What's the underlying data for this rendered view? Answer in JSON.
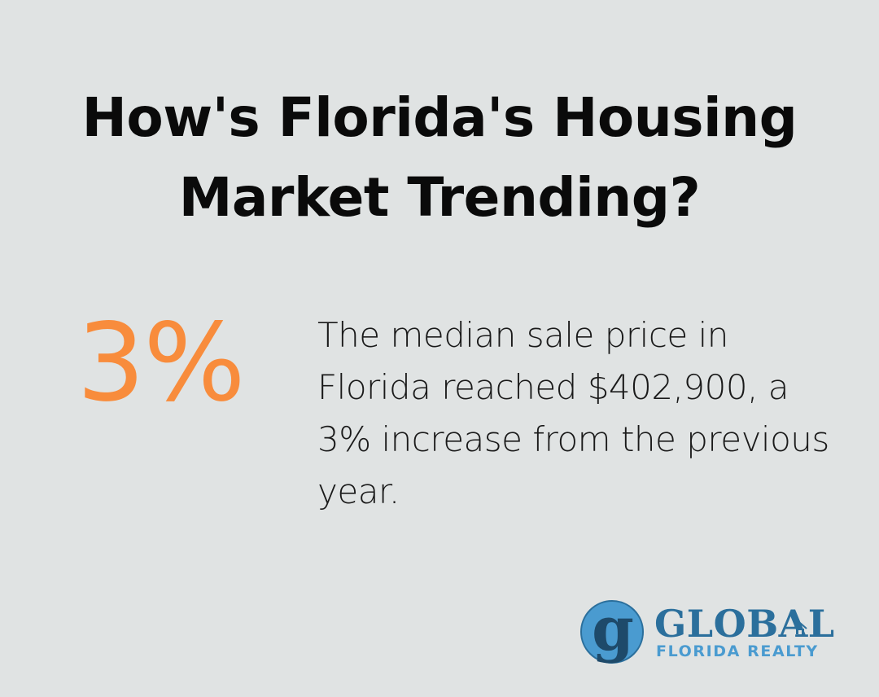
{
  "title": "How's Florida's Housing Market Trending?",
  "stat": {
    "value": "3%",
    "description": "The median sale price in Florida reached $402,900, a 3% increase from the previous year."
  },
  "logo": {
    "mark_letter": "g",
    "name": "GLOBAL",
    "tagline": "FLORIDA REALTY"
  },
  "colors": {
    "background": "#e0e3e3",
    "accent": "#f88c3c",
    "brand_dark": "#2b6f9c",
    "brand_light": "#4a9bd0"
  }
}
